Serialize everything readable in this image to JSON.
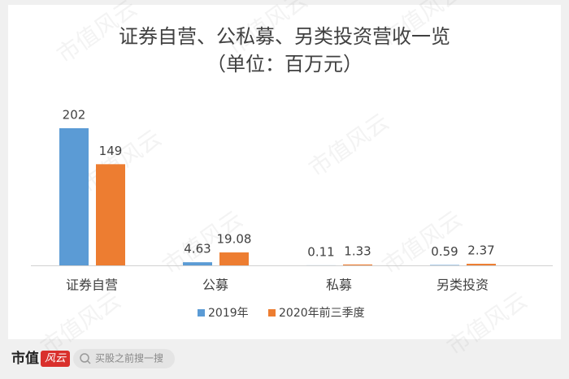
{
  "chart_data": {
    "type": "bar",
    "title": "证券自营、公私募、另类投资营收一览",
    "subtitle": "（单位：百万元）",
    "categories": [
      "证券自营",
      "公募",
      "私募",
      "另类投资"
    ],
    "series": [
      {
        "name": "2019年",
        "color": "#5b9bd5",
        "values": [
          202,
          4.63,
          0.11,
          0.59
        ]
      },
      {
        "name": "2020年前三季度",
        "color": "#ed7d31",
        "values": [
          149,
          19.08,
          1.33,
          2.37
        ]
      }
    ],
    "legend": "bottom"
  },
  "watermark": "市值风云",
  "footer": {
    "logo": "市值",
    "badge": "风云",
    "search": "买股之前搜一搜"
  }
}
